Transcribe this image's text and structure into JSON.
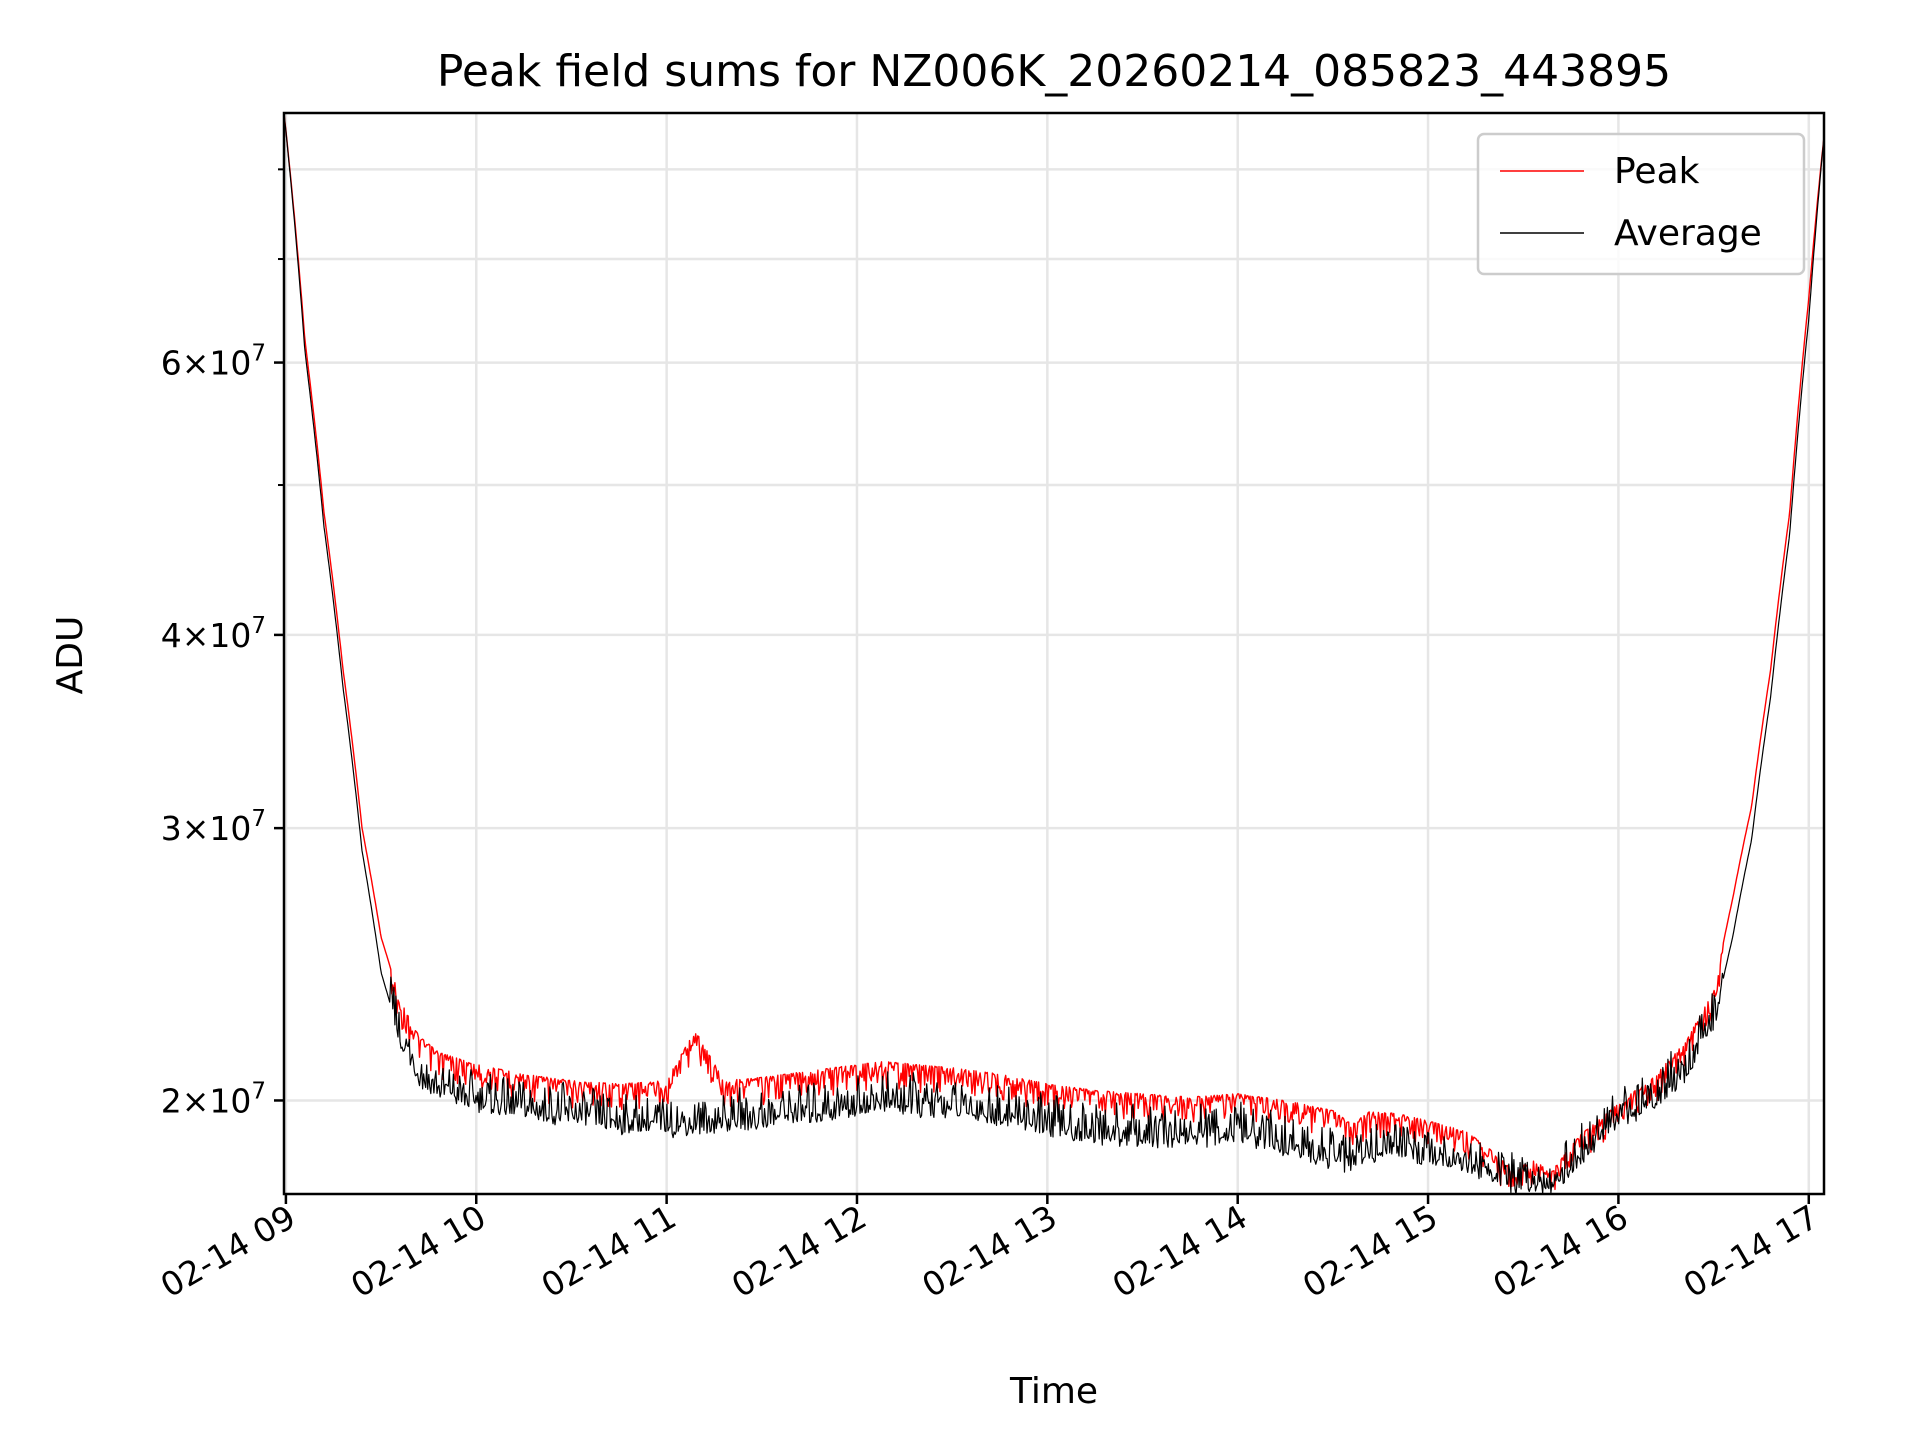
{
  "chart_data": {
    "type": "line",
    "title": "Peak field sums for NZ006K_20260214_085823_443895",
    "xlabel": "Time",
    "ylabel": "ADU",
    "x_unit": "hours",
    "xlim": [
      8.99,
      17.08
    ],
    "ylim": [
      17400000,
      87000000
    ],
    "yscale": "log",
    "grid": true,
    "legend_position": "top-right",
    "x_ticks": [
      {
        "value": 9,
        "label": "02-14 09"
      },
      {
        "value": 10,
        "label": "02-14 10"
      },
      {
        "value": 11,
        "label": "02-14 11"
      },
      {
        "value": 12,
        "label": "02-14 12"
      },
      {
        "value": 13,
        "label": "02-14 13"
      },
      {
        "value": 14,
        "label": "02-14 14"
      },
      {
        "value": 15,
        "label": "02-14 15"
      },
      {
        "value": 16,
        "label": "02-14 16"
      },
      {
        "value": 17,
        "label": "02-14 17"
      }
    ],
    "y_ticks": [
      {
        "value": 20000000,
        "mantissa": "2",
        "exponent": "7"
      },
      {
        "value": 30000000,
        "mantissa": "3",
        "exponent": "7"
      },
      {
        "value": 40000000,
        "mantissa": "4",
        "exponent": "7"
      },
      {
        "value": 60000000,
        "mantissa": "6",
        "exponent": "7"
      }
    ],
    "y_minor_ticks": [
      50000000,
      70000000,
      80000000
    ],
    "series": [
      {
        "name": "Peak",
        "color": "#ff0000",
        "x": [
          8.99,
          9.1,
          9.2,
          9.3,
          9.4,
          9.5,
          9.6,
          9.7,
          9.8,
          9.9,
          10.0,
          10.25,
          10.5,
          10.75,
          11.0,
          11.15,
          11.3,
          11.5,
          11.75,
          12.0,
          12.15,
          12.3,
          12.5,
          12.75,
          13.0,
          13.25,
          13.5,
          13.75,
          14.0,
          14.25,
          14.5,
          14.6,
          14.7,
          14.85,
          15.0,
          15.2,
          15.35,
          15.45,
          15.55,
          15.65,
          15.8,
          16.0,
          16.2,
          16.35,
          16.5,
          16.6,
          16.7,
          16.8,
          16.9,
          17.0,
          17.08
        ],
        "values": [
          87000000,
          62000000,
          48000000,
          38000000,
          30000000,
          25500000,
          23200000,
          22000000,
          21500000,
          21300000,
          21100000,
          20800000,
          20600000,
          20500000,
          20600000,
          22200000,
          20600000,
          20700000,
          20900000,
          21100000,
          21200000,
          21100000,
          21000000,
          20800000,
          20500000,
          20300000,
          20200000,
          20100000,
          20200000,
          20000000,
          19700000,
          19300000,
          19700000,
          19600000,
          19400000,
          19100000,
          18500000,
          18000000,
          18300000,
          18000000,
          19000000,
          19900000,
          20800000,
          21800000,
          23500000,
          27000000,
          31000000,
          38000000,
          48000000,
          66000000,
          84000000
        ]
      },
      {
        "name": "Average",
        "color": "#000000",
        "x": [
          8.99,
          9.1,
          9.2,
          9.3,
          9.4,
          9.5,
          9.6,
          9.7,
          9.8,
          9.9,
          10.0,
          10.25,
          10.5,
          10.75,
          11.0,
          11.15,
          11.3,
          11.5,
          11.75,
          12.0,
          12.15,
          12.3,
          12.5,
          12.75,
          13.0,
          13.25,
          13.5,
          13.75,
          14.0,
          14.25,
          14.5,
          14.6,
          14.7,
          14.85,
          15.0,
          15.2,
          15.35,
          15.45,
          15.55,
          15.65,
          15.8,
          16.0,
          16.2,
          16.35,
          16.5,
          16.6,
          16.7,
          16.8,
          16.9,
          17.0,
          17.08
        ],
        "values": [
          87000000,
          61000000,
          47000000,
          37000000,
          29000000,
          24200000,
          21900000,
          20700000,
          20300000,
          20100000,
          19900000,
          19700000,
          19500000,
          19300000,
          19200000,
          19200000,
          19300000,
          19400000,
          19600000,
          19800000,
          19900000,
          19800000,
          19700000,
          19500000,
          19200000,
          19000000,
          18900000,
          18900000,
          19000000,
          18600000,
          18300000,
          18200000,
          18500000,
          18500000,
          18400000,
          18200000,
          17900000,
          17600000,
          17700000,
          17600000,
          18400000,
          19300000,
          20100000,
          20800000,
          22400000,
          25500000,
          29500000,
          36500000,
          46500000,
          64000000,
          84000000
        ]
      }
    ]
  }
}
